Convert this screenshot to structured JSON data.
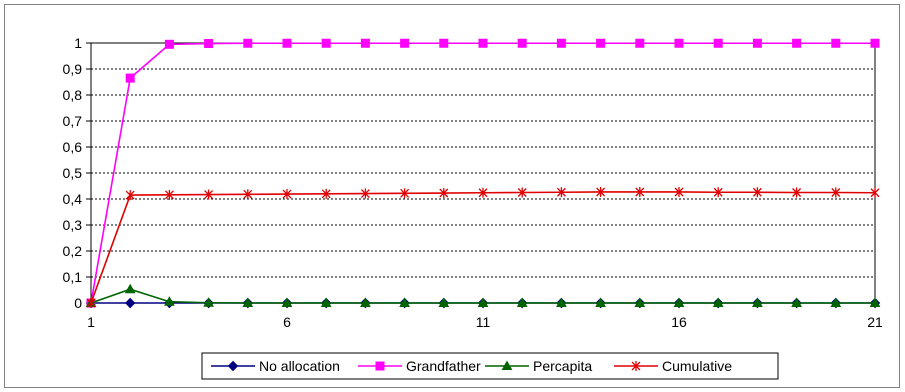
{
  "chart_data": {
    "type": "line",
    "x": [
      1,
      2,
      3,
      4,
      5,
      6,
      7,
      8,
      9,
      10,
      11,
      12,
      13,
      14,
      15,
      16,
      17,
      18,
      19,
      20,
      21
    ],
    "xticks": [
      1,
      6,
      11,
      16,
      21
    ],
    "ylim": [
      0,
      1
    ],
    "yticks": [
      "0",
      "0,1",
      "0,2",
      "0,3",
      "0,4",
      "0,5",
      "0,6",
      "0,7",
      "0,8",
      "0,9",
      "1"
    ],
    "grid": "horizontal",
    "legend_position": "bottom",
    "series": [
      {
        "name": "No allocation",
        "color": "#000080",
        "marker": "diamond",
        "values": [
          0,
          0,
          0,
          0,
          0,
          0,
          0,
          0,
          0,
          0,
          0,
          0,
          0,
          0,
          0,
          0,
          0,
          0,
          0,
          0,
          0
        ]
      },
      {
        "name": "Grandfather",
        "color": "#FF00FF",
        "marker": "square",
        "values": [
          0,
          0.865,
          0.995,
          0.998,
          0.999,
          0.999,
          0.999,
          0.999,
          0.999,
          0.999,
          0.999,
          0.999,
          0.999,
          0.999,
          0.999,
          0.999,
          0.999,
          0.999,
          0.999,
          0.999,
          0.999
        ]
      },
      {
        "name": "Percapita",
        "color": "#006400",
        "marker": "triangle",
        "values": [
          0,
          0.053,
          0.005,
          0.001,
          0,
          0,
          0,
          0,
          0,
          0,
          0,
          0,
          0,
          0,
          0,
          0,
          0,
          0,
          0,
          0,
          0
        ]
      },
      {
        "name": "Cumulative",
        "color": "#E00000",
        "marker": "star",
        "values": [
          0,
          0.415,
          0.416,
          0.417,
          0.418,
          0.419,
          0.42,
          0.421,
          0.422,
          0.423,
          0.424,
          0.425,
          0.426,
          0.427,
          0.427,
          0.427,
          0.426,
          0.426,
          0.425,
          0.425,
          0.424
        ]
      }
    ]
  }
}
